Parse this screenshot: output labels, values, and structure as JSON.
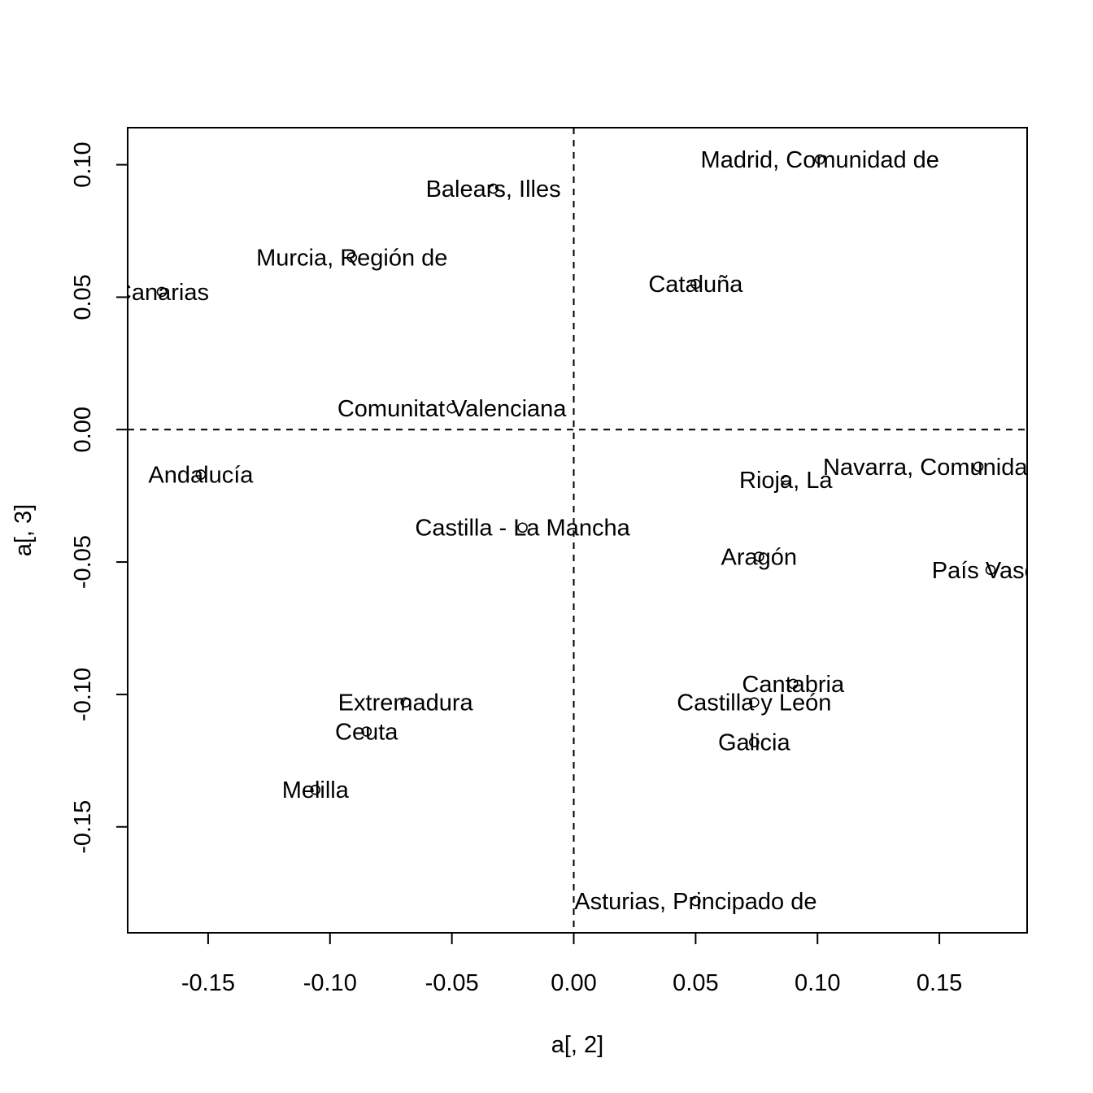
{
  "chart_data": {
    "type": "scatter",
    "title": "",
    "xlabel": "a[, 2]",
    "ylabel": "a[, 3]",
    "xlim": [
      -0.183,
      0.186
    ],
    "ylim": [
      -0.19,
      0.114
    ],
    "xticks": [
      "-0.15",
      "-0.10",
      "-0.05",
      "0.00",
      "0.05",
      "0.10",
      "0.15"
    ],
    "yticks": [
      "-0.15",
      "-0.10",
      "-0.05",
      "0.00",
      "0.05",
      "0.10"
    ],
    "reference_lines": {
      "x": 0,
      "y": 0,
      "style": "dashed"
    },
    "grid": false,
    "marker": "open-circle",
    "points": [
      {
        "label": "Madrid, Comunidad de",
        "x": 0.101,
        "y": 0.102
      },
      {
        "label": "Balears, Illes",
        "x": -0.033,
        "y": 0.091
      },
      {
        "label": "Murcia, Región de",
        "x": -0.091,
        "y": 0.065
      },
      {
        "label": "Canarias",
        "x": -0.169,
        "y": 0.052
      },
      {
        "label": "Cataluña",
        "x": 0.05,
        "y": 0.055
      },
      {
        "label": "Comunitat Valenciana",
        "x": -0.05,
        "y": 0.008
      },
      {
        "label": "Andalucía",
        "x": -0.153,
        "y": -0.017
      },
      {
        "label": "Navarra, Comunidad Foral de",
        "x": 0.166,
        "y": -0.014
      },
      {
        "label": "Rioja, La",
        "x": 0.087,
        "y": -0.019
      },
      {
        "label": "Castilla - La Mancha",
        "x": -0.021,
        "y": -0.037
      },
      {
        "label": "Aragón",
        "x": 0.076,
        "y": -0.048
      },
      {
        "label": "País Vasco",
        "x": 0.171,
        "y": -0.053
      },
      {
        "label": "Cantabria",
        "x": 0.09,
        "y": -0.096
      },
      {
        "label": "Castilla y León",
        "x": 0.074,
        "y": -0.103
      },
      {
        "label": "Extremadura",
        "x": -0.069,
        "y": -0.103
      },
      {
        "label": "Ceuta",
        "x": -0.085,
        "y": -0.114
      },
      {
        "label": "Galicia",
        "x": 0.074,
        "y": -0.118
      },
      {
        "label": "Melilla",
        "x": -0.106,
        "y": -0.136
      },
      {
        "label": "Asturias, Principado de",
        "x": 0.05,
        "y": -0.178
      }
    ]
  }
}
